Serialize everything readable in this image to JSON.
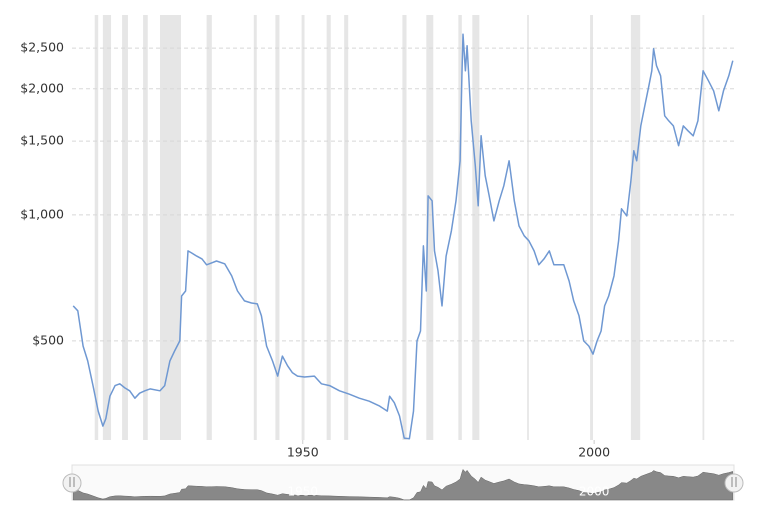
{
  "chart_data": {
    "type": "line",
    "log_scale_y": true,
    "grid": true,
    "xlim": [
      1910.4,
      2024
    ],
    "xticks": [
      1950,
      2000
    ],
    "ylim": [
      290,
      3000
    ],
    "yticks": [
      {
        "value": 500,
        "label": "$500"
      },
      {
        "value": 1000,
        "label": "$1,000"
      },
      {
        "value": 1500,
        "label": "$1,500"
      },
      {
        "value": 2000,
        "label": "$2,000"
      },
      {
        "value": 2500,
        "label": "$2,500"
      }
    ],
    "band_color": "#e6e6e6",
    "shaded_periods": [
      [
        1914.3,
        1914.9
      ],
      [
        1915.7,
        1917.1
      ],
      [
        1919.0,
        1920.0
      ],
      [
        1922.6,
        1923.4
      ],
      [
        1925.5,
        1929.1
      ],
      [
        1933.5,
        1934.4
      ],
      [
        1941.6,
        1942.1
      ],
      [
        1945.3,
        1946.0
      ],
      [
        1949.8,
        1950.3
      ],
      [
        1954.1,
        1954.8
      ],
      [
        1957.1,
        1957.8
      ],
      [
        1967.1,
        1967.8
      ],
      [
        1971.2,
        1972.4
      ],
      [
        1976.7,
        1977.3
      ],
      [
        1979.1,
        1980.3
      ],
      [
        1988.5,
        1988.8
      ],
      [
        1999.3,
        1999.8
      ],
      [
        2006.3,
        2007.9
      ],
      [
        2018.6,
        2018.9
      ]
    ],
    "series": [
      {
        "color": "#6f98d2",
        "x": [
          1910.6,
          1911.4,
          1912.3,
          1913.1,
          1914.0,
          1914.9,
          1915.7,
          1916.2,
          1916.9,
          1917.8,
          1918.6,
          1919.5,
          1920.3,
          1921.2,
          1922.0,
          1922.9,
          1923.8,
          1925.5,
          1926.3,
          1927.2,
          1928.0,
          1928.9,
          1929.2,
          1929.9,
          1930.3,
          1930.9,
          1931.8,
          1932.7,
          1933.5,
          1934.4,
          1935.2,
          1936.6,
          1937.8,
          1938.8,
          1940.0,
          1941.2,
          1942.2,
          1942.9,
          1943.8,
          1944.8,
          1945.7,
          1946.5,
          1947.4,
          1948.2,
          1949.1,
          1950.3,
          1952.0,
          1953.2,
          1954.6,
          1956.3,
          1958.0,
          1959.7,
          1961.4,
          1963.1,
          1964.5,
          1964.9,
          1965.7,
          1966.6,
          1967.4,
          1968.3,
          1969.0,
          1969.6,
          1970.2,
          1970.7,
          1971.2,
          1971.5,
          1972.2,
          1972.6,
          1973.2,
          1973.9,
          1974.6,
          1975.5,
          1976.3,
          1977.0,
          1977.3,
          1977.5,
          1977.9,
          1978.2,
          1978.9,
          1979.6,
          1980.1,
          1980.6,
          1981.3,
          1982.0,
          1982.8,
          1983.7,
          1984.5,
          1985.4,
          1986.3,
          1987.1,
          1988.0,
          1988.8,
          1989.7,
          1990.5,
          1991.4,
          1992.3,
          1993.1,
          1994.0,
          1994.8,
          1995.7,
          1996.5,
          1997.4,
          1998.2,
          1999.1,
          1999.8,
          2000.5,
          2001.2,
          2001.8,
          2002.5,
          2003.4,
          2004.2,
          2004.7,
          2005.6,
          2006.3,
          2006.8,
          2007.3,
          2008.0,
          2008.7,
          2009.4,
          2009.9,
          2010.2,
          2010.7,
          2011.4,
          2012.1,
          2012.8,
          2013.6,
          2014.5,
          2015.3,
          2016.1,
          2017.0,
          2017.8,
          2018.7,
          2019.6,
          2020.5,
          2021.4,
          2022.2,
          2023.1,
          2023.8
        ],
        "values": [
          606,
          590,
          486,
          448,
          391,
          340,
          313,
          326,
          369,
          391,
          395,
          386,
          380,
          365,
          375,
          380,
          384,
          380,
          391,
          448,
          473,
          500,
          640,
          658,
          820,
          811,
          797,
          785,
          760,
          768,
          776,
          764,
          715,
          658,
          623,
          616,
          613,
          574,
          486,
          448,
          412,
          460,
          436,
          420,
          412,
          410,
          412,
          395,
          391,
          380,
          373,
          365,
          359,
          350,
          340,
          369,
          356,
          331,
          293,
          292,
          340,
          500,
          528,
          843,
          658,
          1110,
          1080,
          820,
          735,
          606,
          797,
          916,
          1080,
          1346,
          2148,
          2700,
          2208,
          2534,
          1677,
          1310,
          1051,
          1544,
          1240,
          1110,
          967,
          1080,
          1173,
          1346,
          1080,
          941,
          891,
          867,
          820,
          760,
          785,
          820,
          760,
          760,
          760,
          695,
          623,
          574,
          500,
          486,
          465,
          500,
          528,
          606,
          640,
          715,
          867,
          1034,
          994,
          1206,
          1422,
          1346,
          1631,
          1821,
          2034,
          2208,
          2492,
          2270,
          2148,
          1724,
          1677,
          1631,
          1462,
          1631,
          1587,
          1544,
          1677,
          2208,
          2090,
          1978,
          1772,
          1978,
          2148,
          2333
        ]
      }
    ]
  }
}
